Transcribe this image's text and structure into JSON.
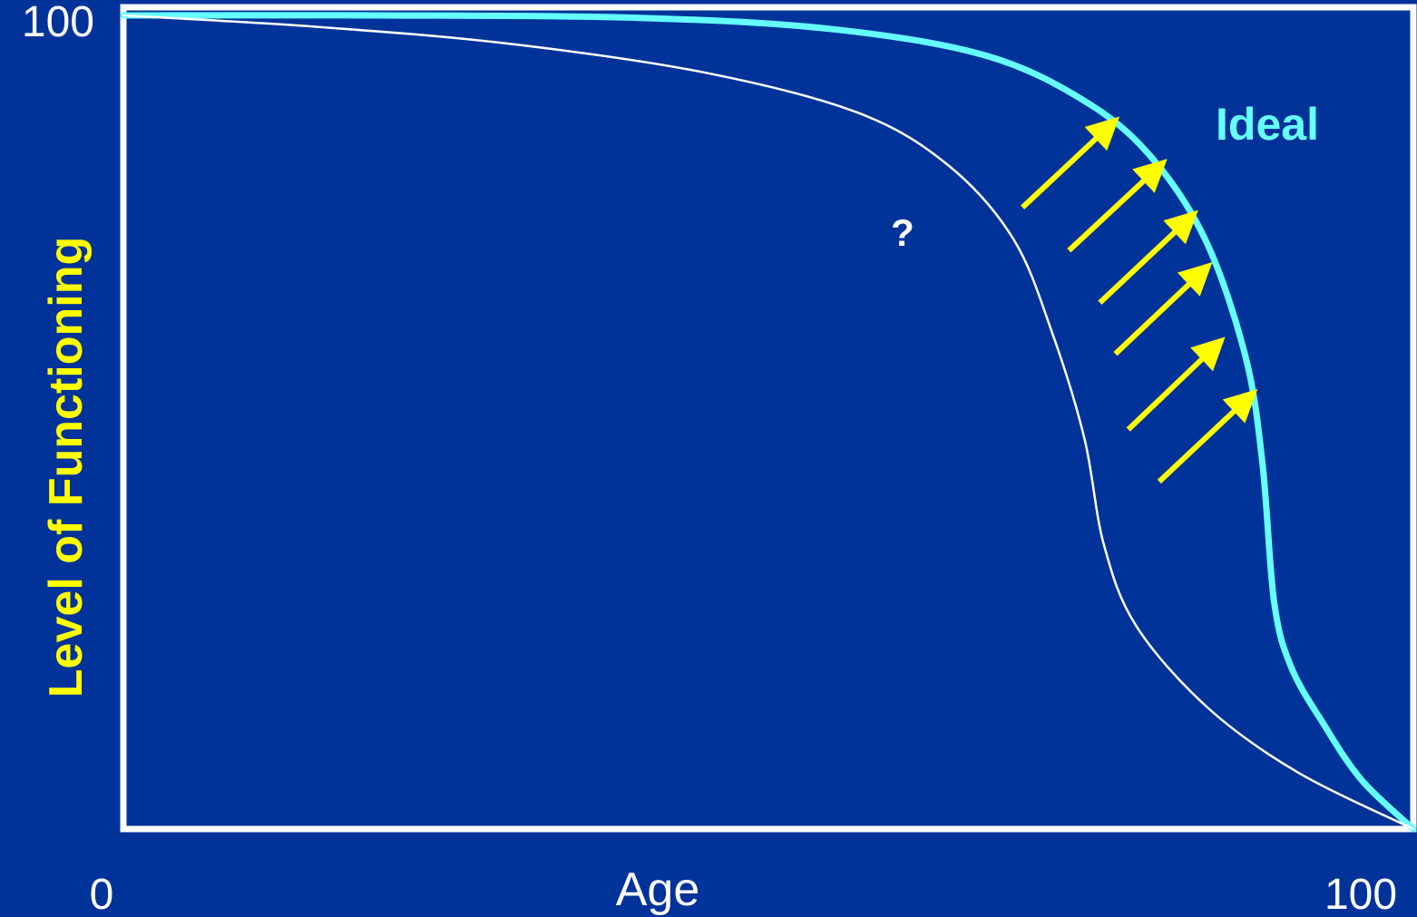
{
  "chart_data": {
    "type": "line",
    "xlabel": "Age",
    "ylabel": "Level of Functioning",
    "xlim": [
      0,
      100
    ],
    "ylim": [
      0,
      100
    ],
    "x_tick_labels": [
      "0",
      "100"
    ],
    "y_tick_labels": [
      "100"
    ],
    "grid": false,
    "series": [
      {
        "name": "Ideal",
        "color": "#66ffff",
        "points": [
          [
            0,
            100
          ],
          [
            20,
            100
          ],
          [
            40,
            99.7
          ],
          [
            55,
            98.3
          ],
          [
            67,
            95
          ],
          [
            75,
            89
          ],
          [
            80,
            82
          ],
          [
            84,
            72
          ],
          [
            87,
            58
          ],
          [
            88.3,
            45
          ],
          [
            89.2,
            28
          ],
          [
            90.5,
            20
          ],
          [
            93,
            13
          ],
          [
            96,
            6
          ],
          [
            100,
            0
          ]
        ]
      },
      {
        "name": "",
        "color": "#ffffff",
        "points": [
          [
            0,
            100
          ],
          [
            15,
            98.6
          ],
          [
            30,
            96.5
          ],
          [
            45,
            93
          ],
          [
            57,
            88
          ],
          [
            64,
            81.5
          ],
          [
            69,
            72.5
          ],
          [
            72,
            61
          ],
          [
            74.5,
            48
          ],
          [
            76,
            35
          ],
          [
            78.5,
            25
          ],
          [
            84,
            15
          ],
          [
            91,
            7
          ],
          [
            100,
            0
          ]
        ]
      }
    ],
    "annotations": [
      {
        "text": "Ideal",
        "x": 89.5,
        "y": 86.5,
        "color": "#66ffff"
      },
      {
        "text": "?",
        "x": 60.5,
        "y": 73,
        "color": "#ffffff"
      }
    ],
    "arrows": {
      "color": "#ffff00",
      "items": [
        {
          "from": [
            69.7,
            76.4
          ],
          "to": [
            76.3,
            86.2
          ]
        },
        {
          "from": [
            73.3,
            71.1
          ],
          "to": [
            80.0,
            81.0
          ]
        },
        {
          "from": [
            75.7,
            64.7
          ],
          "to": [
            82.4,
            74.7
          ]
        },
        {
          "from": [
            76.9,
            58.4
          ],
          "to": [
            83.5,
            68.3
          ]
        },
        {
          "from": [
            77.9,
            49.1
          ],
          "to": [
            84.5,
            59.1
          ]
        },
        {
          "from": [
            80.3,
            42.7
          ],
          "to": [
            87.0,
            52.7
          ]
        }
      ]
    }
  }
}
